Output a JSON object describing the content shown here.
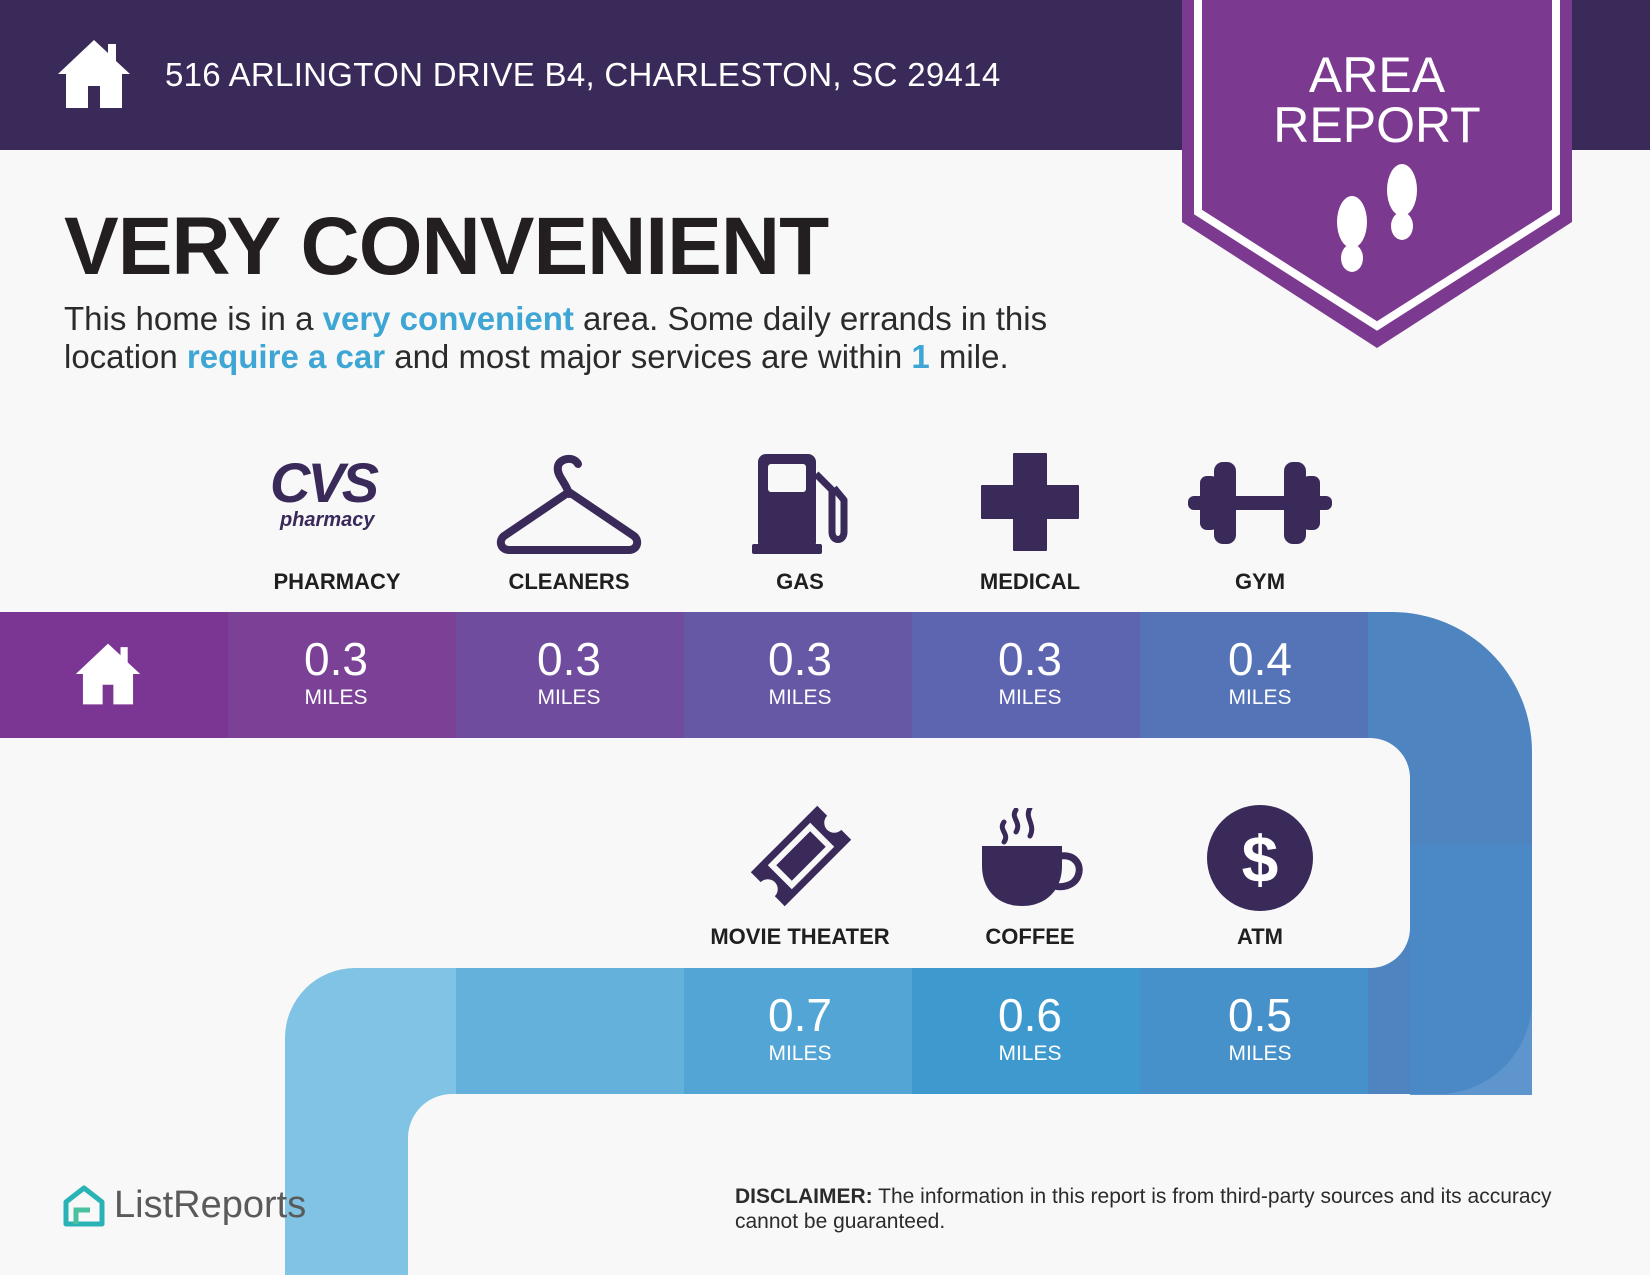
{
  "header": {
    "address": "516 ARLINGTON DRIVE B4, CHARLESTON, SC 29414",
    "badge_line1": "AREA",
    "badge_line2": "REPORT",
    "bg_color": "#3a2a5a",
    "badge_color": "#7b3a90"
  },
  "main": {
    "title": "VERY CONVENIENT",
    "desc_1": "This home is in a ",
    "desc_hl1": "very convenient",
    "desc_2": " area. Some daily errands in this location ",
    "desc_hl2": "require a car",
    "desc_3": " and most major services are within ",
    "desc_hl3": "1",
    "desc_4": " mile.",
    "highlight_color": "#3ea6d4"
  },
  "stops_row1": [
    {
      "label": "PHARMACY",
      "value": "0.3",
      "unit": "MILES",
      "icon": "cvs-pharmacy-logo"
    },
    {
      "label": "CLEANERS",
      "value": "0.3",
      "unit": "MILES",
      "icon": "hanger-icon"
    },
    {
      "label": "GAS",
      "value": "0.3",
      "unit": "MILES",
      "icon": "gas-pump-icon"
    },
    {
      "label": "MEDICAL",
      "value": "0.3",
      "unit": "MILES",
      "icon": "medical-cross-icon"
    },
    {
      "label": "GYM",
      "value": "0.4",
      "unit": "MILES",
      "icon": "dumbbell-icon"
    }
  ],
  "stops_row2": [
    {
      "label": "MOVIE THEATER",
      "value": "0.7",
      "unit": "MILES",
      "icon": "ticket-icon"
    },
    {
      "label": "COFFEE",
      "value": "0.6",
      "unit": "MILES",
      "icon": "coffee-cup-icon"
    },
    {
      "label": "ATM",
      "value": "0.5",
      "unit": "MILES",
      "icon": "dollar-icon"
    }
  ],
  "cvs_logo": {
    "brand": "CVS",
    "sub": "pharmacy"
  },
  "footer": {
    "logo": "ListReports",
    "disclaimer_label": "DISCLAIMER:",
    "disclaimer_text": " The information in this report is from third-party sources and its accuracy cannot be guaranteed."
  }
}
